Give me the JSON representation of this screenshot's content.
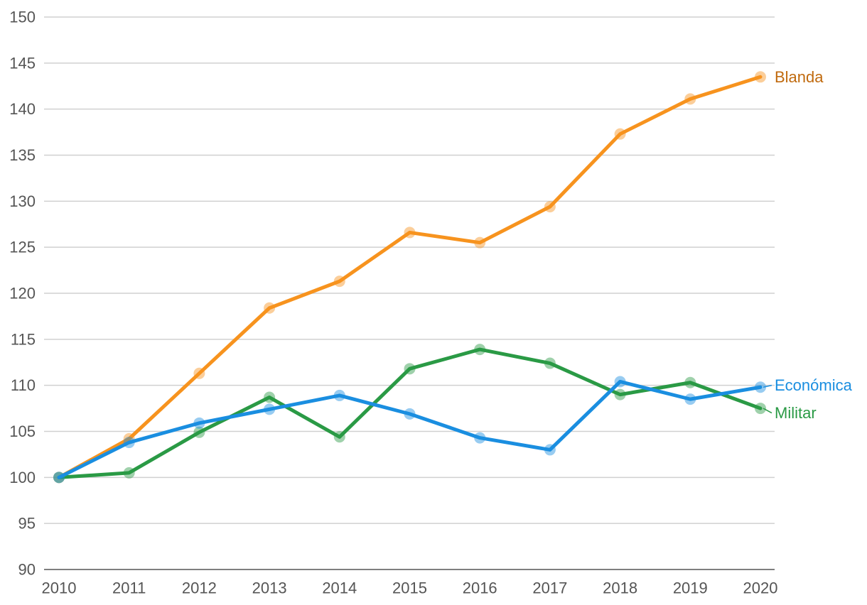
{
  "chart_data": {
    "type": "line",
    "title": "",
    "xlabel": "",
    "ylabel": "",
    "x": [
      "2010",
      "2011",
      "2012",
      "2013",
      "2014",
      "2015",
      "2016",
      "2017",
      "2018",
      "2019",
      "2020"
    ],
    "ylim": [
      90,
      150
    ],
    "yticks": [
      90,
      95,
      100,
      105,
      110,
      115,
      120,
      125,
      130,
      135,
      140,
      145,
      150
    ],
    "grid": true,
    "legend": "inline labels at right end of lines",
    "series": [
      {
        "name": "Blanda",
        "color": "#f7931e",
        "values": [
          100,
          104.2,
          111.3,
          118.4,
          121.3,
          126.6,
          125.5,
          129.4,
          137.3,
          141.1,
          143.5
        ]
      },
      {
        "name": "Económica",
        "color": "#1a8ee0",
        "values": [
          100,
          103.8,
          105.9,
          107.4,
          108.9,
          106.9,
          104.3,
          103.0,
          110.4,
          108.5,
          109.8
        ]
      },
      {
        "name": "Militar",
        "color": "#2a9a45",
        "values": [
          100,
          100.5,
          104.9,
          108.7,
          104.4,
          111.8,
          113.9,
          112.4,
          109.0,
          110.3,
          107.5
        ]
      }
    ]
  }
}
